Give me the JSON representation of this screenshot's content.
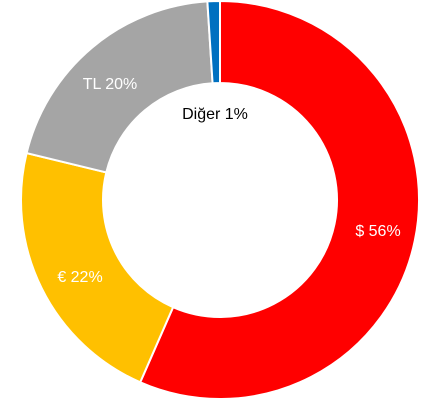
{
  "chart_data": {
    "type": "donut",
    "categories": [
      "$",
      "€",
      "TL",
      "Diğer"
    ],
    "values": [
      56,
      22,
      20,
      1
    ],
    "value_labels": [
      "$ 56%",
      "€ 22%",
      "TL 20%",
      "Diğer 1%"
    ],
    "colors": [
      "#ff0000",
      "#ffc000",
      "#a5a5a5",
      "#0070c0"
    ]
  }
}
